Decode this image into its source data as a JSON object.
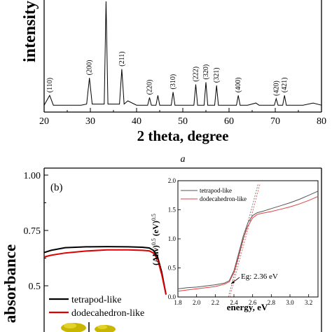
{
  "chart_data": [
    {
      "type": "line",
      "panel": "a",
      "panel_caption": "a",
      "xlabel": "2 theta, degree",
      "ylabel": "intensity",
      "xlim": [
        20,
        80
      ],
      "x_ticks": [
        "20",
        "30",
        "40",
        "50",
        "60",
        "70",
        "80"
      ],
      "series": [
        {
          "x": [
            20,
            21.2,
            22,
            24,
            26,
            28,
            29.2,
            29.8,
            30.4,
            32,
            33.0,
            33.4,
            33.8,
            35,
            36.3,
            36.8,
            37.3,
            38.1,
            40,
            42.4,
            42.8,
            43.2,
            44.2,
            44.6,
            45.0,
            46,
            47.5,
            47.9,
            48.3,
            50,
            52.4,
            52.8,
            53.2,
            54.6,
            55.0,
            55.4,
            56.9,
            57.3,
            57.7,
            60,
            61.6,
            62.0,
            62.4,
            64,
            65.8,
            66.5,
            69.8,
            70.2,
            70.6,
            71.6,
            72.0,
            72.4,
            74,
            76,
            78.2,
            80
          ],
          "y": [
            5,
            14,
            5,
            5,
            5,
            5,
            6,
            30,
            6,
            6,
            6,
            100,
            6,
            6,
            6,
            38,
            6,
            9,
            5,
            5,
            12,
            5,
            5,
            14,
            5,
            5,
            5,
            17,
            5,
            5,
            5,
            24,
            5,
            5,
            26,
            5,
            5,
            23,
            5,
            5,
            5,
            14,
            5,
            5,
            7,
            5,
            5,
            11,
            5,
            5,
            14,
            5,
            5,
            5,
            7,
            5
          ]
        }
      ],
      "peak_labels": [
        {
          "label": "(110)",
          "x": 21.2
        },
        {
          "label": "(200)",
          "x": 29.8
        },
        {
          "label": "(211)",
          "x": 36.8
        },
        {
          "label": "(220)",
          "x": 42.8
        },
        {
          "label": "(310)",
          "x": 47.9
        },
        {
          "label": "(222)",
          "x": 52.8
        },
        {
          "label": "(320)",
          "x": 55.0
        },
        {
          "label": "(321)",
          "x": 57.3
        },
        {
          "label": "(400)",
          "x": 62.0
        },
        {
          "label": "(420)",
          "x": 70.2
        },
        {
          "label": "(421)",
          "x": 72.0
        }
      ]
    },
    {
      "type": "line",
      "panel": "b",
      "panel_label": "(b)",
      "ylabel": "absorbance",
      "y_ticks": [
        "1.00",
        "0.75",
        "0.5"
      ],
      "ylim_visible": [
        0.47,
        1.0
      ],
      "series": [
        {
          "name": "tetrapod-like",
          "color": "#000000",
          "x": [
            0,
            0.05,
            0.15,
            0.3,
            0.45,
            0.6,
            0.7,
            0.75,
            0.78,
            0.81,
            0.84,
            0.87
          ],
          "y": [
            0.65,
            0.66,
            0.672,
            0.676,
            0.677,
            0.676,
            0.674,
            0.671,
            0.66,
            0.63,
            0.56,
            0.46
          ]
        },
        {
          "name": "dodecahedron-like",
          "color": "#e00000",
          "x": [
            0,
            0.05,
            0.15,
            0.3,
            0.45,
            0.6,
            0.7,
            0.75,
            0.78,
            0.81,
            0.84,
            0.87
          ],
          "y": [
            0.63,
            0.638,
            0.648,
            0.657,
            0.662,
            0.662,
            0.66,
            0.658,
            0.648,
            0.62,
            0.55,
            0.46
          ]
        }
      ],
      "inset": {
        "type": "line",
        "xlabel": "energy, eV",
        "ylabel": "(Ahν)^0.5 (eV)^0.5",
        "xlim": [
          1.8,
          3.3
        ],
        "ylim": [
          0.0,
          2.0
        ],
        "x_ticks": [
          "1.8",
          "2.0",
          "2.2",
          "2.4",
          "2.6",
          "2.8",
          "3.0",
          "3.2"
        ],
        "y_ticks": [
          "0.0",
          "0.5",
          "1.0",
          "1.5",
          "2.0"
        ],
        "annotation": "Eg: 2.36 eV",
        "series": [
          {
            "name": "tetrapod-like",
            "color": "#555555",
            "x": [
              1.8,
              1.9,
              2.0,
              2.1,
              2.2,
              2.3,
              2.35,
              2.4,
              2.45,
              2.5,
              2.55,
              2.6,
              2.65,
              2.7,
              2.8,
              2.9,
              3.0,
              3.1,
              3.2,
              3.3
            ],
            "y": [
              0.14,
              0.16,
              0.17,
              0.19,
              0.21,
              0.24,
              0.28,
              0.45,
              0.75,
              1.05,
              1.28,
              1.4,
              1.45,
              1.47,
              1.52,
              1.57,
              1.62,
              1.68,
              1.75,
              1.82
            ]
          },
          {
            "name": "dodecahedron-like",
            "color": "#e04040",
            "x": [
              1.8,
              1.9,
              2.0,
              2.1,
              2.2,
              2.3,
              2.35,
              2.4,
              2.45,
              2.5,
              2.55,
              2.6,
              2.65,
              2.7,
              2.8,
              2.9,
              3.0,
              3.1,
              3.2,
              3.3
            ],
            "y": [
              0.1,
              0.12,
              0.14,
              0.16,
              0.18,
              0.22,
              0.26,
              0.42,
              0.7,
              1.0,
              1.22,
              1.36,
              1.42,
              1.44,
              1.47,
              1.51,
              1.55,
              1.6,
              1.66,
              1.73
            ]
          }
        ]
      }
    }
  ]
}
